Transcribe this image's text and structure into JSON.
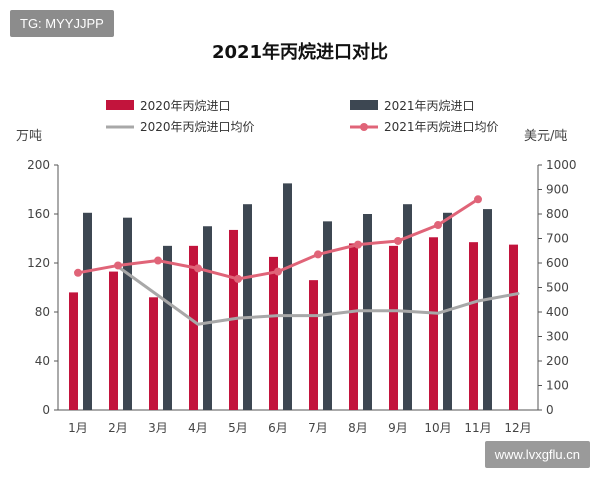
{
  "watermark_tag": "TG: MYYJJPP",
  "site_label": "www.lvxgflu.cn",
  "chart_data": {
    "type": "bar",
    "title": "2021年丙烷进口对比",
    "y_left_label": "万吨",
    "y_right_label": "美元/吨",
    "categories": [
      "1月",
      "2月",
      "3月",
      "4月",
      "5月",
      "6月",
      "7月",
      "8月",
      "9月",
      "10月",
      "11月",
      "12月"
    ],
    "y_left_ticks": [
      0,
      40,
      80,
      120,
      160,
      200
    ],
    "y_right_ticks": [
      0,
      100,
      200,
      300,
      400,
      500,
      600,
      700,
      800,
      900,
      1000
    ],
    "y_left_range": [
      0,
      200
    ],
    "y_right_range": [
      0,
      1000
    ],
    "bar_series": [
      {
        "name": "2020年丙烷进口",
        "color": "#c2143c",
        "values": [
          96,
          113,
          92,
          134,
          147,
          125,
          106,
          136,
          134,
          141,
          137,
          135
        ]
      },
      {
        "name": "2021年丙烷进口",
        "color": "#3d4752",
        "values": [
          161,
          157,
          134,
          150,
          168,
          185,
          154,
          160,
          168,
          161,
          164,
          null
        ]
      }
    ],
    "line_series": [
      {
        "name": "2020年丙烷进口均价",
        "color": "#a8a8a8",
        "marker": false,
        "values": [
          null,
          585,
          null,
          350,
          375,
          385,
          385,
          405,
          405,
          395,
          445,
          475
        ]
      },
      {
        "name": "2021年丙烷进口均价",
        "color": "#e06478",
        "marker": true,
        "values": [
          560,
          590,
          610,
          578,
          535,
          565,
          635,
          675,
          690,
          755,
          860,
          null
        ]
      }
    ]
  }
}
